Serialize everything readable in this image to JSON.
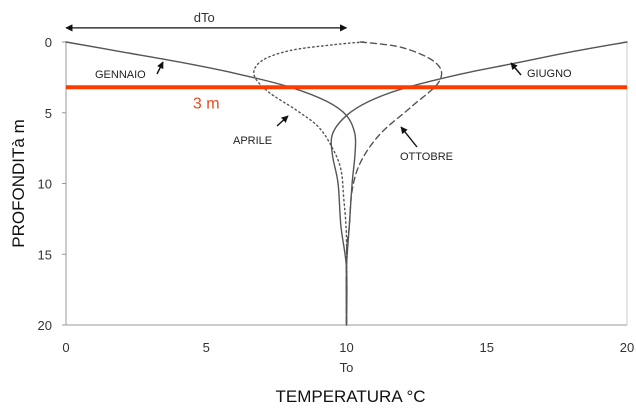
{
  "chart_data": {
    "type": "line",
    "xlabel": "TEMPERATURA °C",
    "ylabel": "PROFONDITà m",
    "xlim": [
      0,
      20
    ],
    "ylim": [
      0,
      20
    ],
    "y_inverted": true,
    "x_ticks": [
      0,
      5,
      10,
      15,
      20
    ],
    "y_ticks": [
      0,
      5,
      10,
      15,
      20
    ],
    "x_tick_labels": [
      "0",
      "5",
      "10",
      "15",
      "20"
    ],
    "y_tick_labels": [
      "0",
      "5",
      "10",
      "15",
      "20"
    ],
    "grid": false,
    "colors": {
      "curves": "#555555",
      "line_3m": "#ff3c00",
      "text_3m": "#e8491d",
      "axes": "#999999"
    },
    "series": [
      {
        "name": "GENNAIO",
        "style": "solid",
        "points": [
          [
            0,
            0
          ],
          [
            2,
            0.7
          ],
          [
            4,
            1.4
          ],
          [
            6,
            2.2
          ],
          [
            8,
            3.2
          ],
          [
            9.3,
            4.2
          ],
          [
            10,
            5.2
          ],
          [
            10.3,
            6.5
          ],
          [
            10.3,
            8
          ],
          [
            10.2,
            10
          ],
          [
            10.1,
            13
          ],
          [
            10,
            16
          ],
          [
            10,
            20
          ]
        ]
      },
      {
        "name": "APRILE",
        "style": "dotted",
        "points": [
          [
            10.6,
            0
          ],
          [
            9.5,
            0.2
          ],
          [
            8,
            0.6
          ],
          [
            7,
            1.3
          ],
          [
            6.7,
            2.3
          ],
          [
            7.2,
            3.5
          ],
          [
            8.2,
            4.8
          ],
          [
            9,
            6
          ],
          [
            9.5,
            7.5
          ],
          [
            9.8,
            9
          ],
          [
            9.9,
            11
          ],
          [
            10,
            14
          ],
          [
            10,
            20
          ]
        ]
      },
      {
        "name": "GIUGNO",
        "style": "solid",
        "points": [
          [
            20,
            0
          ],
          [
            18,
            0.7
          ],
          [
            16,
            1.5
          ],
          [
            14,
            2.3
          ],
          [
            12,
            3.3
          ],
          [
            10.8,
            4.2
          ],
          [
            10,
            5.2
          ],
          [
            9.5,
            6.5
          ],
          [
            9.5,
            8
          ],
          [
            9.7,
            10
          ],
          [
            9.8,
            13
          ],
          [
            10,
            16
          ],
          [
            10,
            20
          ]
        ]
      },
      {
        "name": "OTTOBRE",
        "style": "dashed",
        "points": [
          [
            10.5,
            0
          ],
          [
            12,
            0.4
          ],
          [
            13.2,
            1.5
          ],
          [
            13.3,
            2.8
          ],
          [
            12.3,
            4.6
          ],
          [
            11.2,
            6.5
          ],
          [
            10.5,
            8.5
          ],
          [
            10.2,
            10.5
          ],
          [
            10.1,
            13
          ],
          [
            10,
            15
          ],
          [
            10,
            20
          ]
        ]
      }
    ],
    "annotations": {
      "top_span_label": "dTo",
      "top_span_range": [
        0,
        10
      ],
      "top_span_depth": -1.0,
      "reference_line_label": "3 m",
      "reference_line_depth": 3.2,
      "to_label": "To",
      "to_value": 10,
      "label_gennaio": "GENNAIO",
      "label_aprile": "APRILE",
      "label_giugno": "GIUGNO",
      "label_ottobre": "OTTOBRE"
    }
  }
}
